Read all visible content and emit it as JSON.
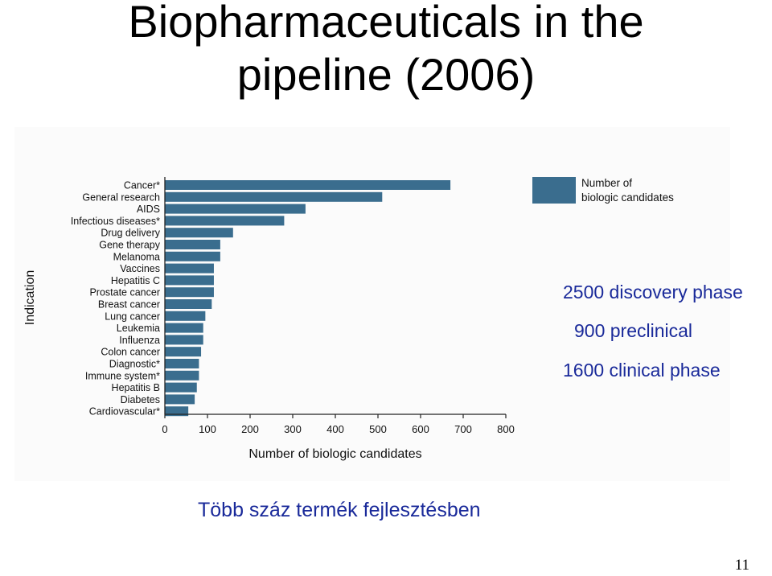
{
  "slide": {
    "title_line1": "Biopharmaceuticals in the",
    "title_line2": "pipeline (2006)",
    "notes": [
      "2500 discovery phase",
      "900 preclinical",
      "1600 clinical phase"
    ],
    "footer": "Több száz termék fejlesztésben",
    "page_number": "11"
  },
  "chart_data": {
    "type": "bar",
    "orientation": "horizontal",
    "categories": [
      "Cancer*",
      "General research",
      "AIDS",
      "Infectious diseases*",
      "Drug delivery",
      "Gene therapy",
      "Melanoma",
      "Vaccines",
      "Hepatitis C",
      "Prostate cancer",
      "Breast cancer",
      "Lung cancer",
      "Leukemia",
      "Influenza",
      "Colon cancer",
      "Diagnostic*",
      "Immune system*",
      "Hepatitis B",
      "Diabetes",
      "Cardiovascular*"
    ],
    "series": [
      {
        "name": "Number of biologic candidates",
        "values": [
          670,
          510,
          330,
          280,
          160,
          130,
          130,
          115,
          115,
          115,
          110,
          95,
          90,
          90,
          85,
          80,
          80,
          75,
          70,
          55
        ]
      }
    ],
    "xlabel": "Number of biologic candidates",
    "ylabel": "Indication",
    "xlim": [
      0,
      800
    ],
    "xticks": [
      0,
      100,
      200,
      300,
      400,
      500,
      600,
      700,
      800
    ],
    "grid": false,
    "legend_position": "top-right",
    "bar_color": "#3a6d8e"
  }
}
